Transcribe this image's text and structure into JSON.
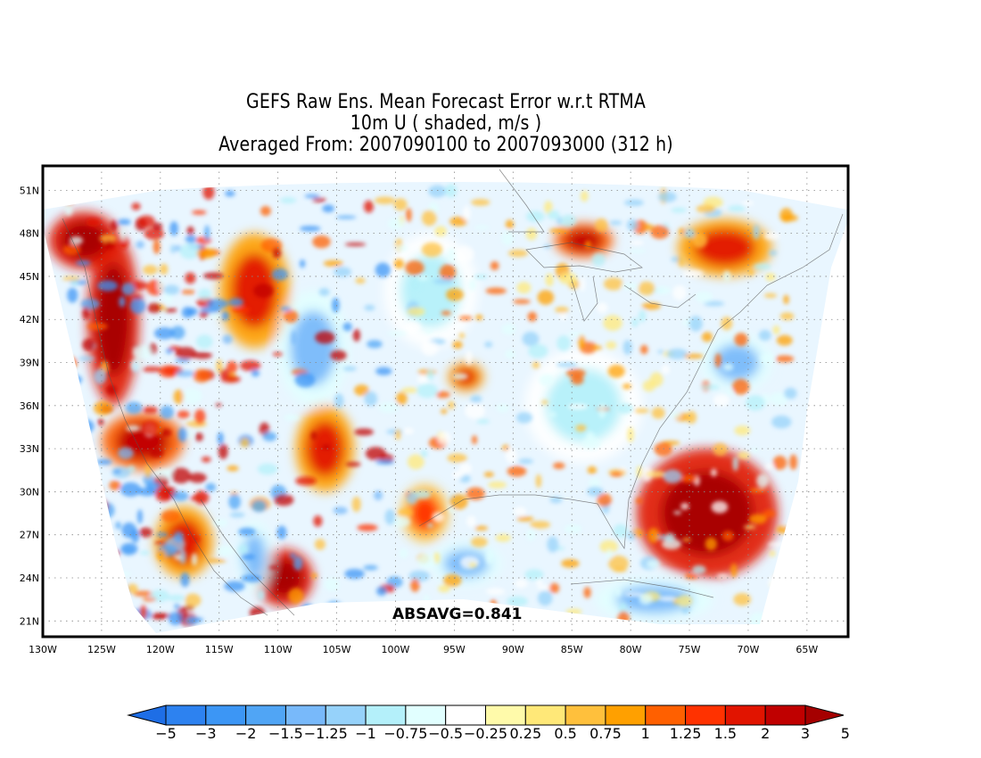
{
  "title": {
    "line1": "GEFS Raw Ens. Mean Forecast Error w.r.t RTMA",
    "line2": "10m U ( shaded, m/s )",
    "line3": "Averaged From: 2007090100 to 2007093000 (312 h)"
  },
  "annotation": "ABSAVG=0.841",
  "map": {
    "projection": "latitude-longitude",
    "lon_range": [
      -130,
      -61.5
    ],
    "lat_range": [
      19.9,
      52.7
    ],
    "gridlines": "dotted",
    "lon_ticks": [
      {
        "value": -130,
        "label": "130W"
      },
      {
        "value": -125,
        "label": "125W"
      },
      {
        "value": -120,
        "label": "120W"
      },
      {
        "value": -115,
        "label": "115W"
      },
      {
        "value": -110,
        "label": "110W"
      },
      {
        "value": -105,
        "label": "105W"
      },
      {
        "value": -100,
        "label": "100W"
      },
      {
        "value": -95,
        "label": "95W"
      },
      {
        "value": -90,
        "label": "90W"
      },
      {
        "value": -85,
        "label": "85W"
      },
      {
        "value": -80,
        "label": "80W"
      },
      {
        "value": -75,
        "label": "75W"
      },
      {
        "value": -70,
        "label": "70W"
      },
      {
        "value": -65,
        "label": "65W"
      }
    ],
    "lat_ticks": [
      {
        "value": 21,
        "label": "21N"
      },
      {
        "value": 24,
        "label": "24N"
      },
      {
        "value": 27,
        "label": "27N"
      },
      {
        "value": 30,
        "label": "30N"
      },
      {
        "value": 33,
        "label": "33N"
      },
      {
        "value": 36,
        "label": "36N"
      },
      {
        "value": 39,
        "label": "39N"
      },
      {
        "value": 42,
        "label": "42N"
      },
      {
        "value": 45,
        "label": "45N"
      },
      {
        "value": 48,
        "label": "48N"
      },
      {
        "value": 51,
        "label": "51N"
      }
    ],
    "features": [
      {
        "name": "pacific-coast-positive-band",
        "sign": "positive",
        "value": 3,
        "lon": -124,
        "lat": 42,
        "rx": 2.2,
        "ry": 6
      },
      {
        "name": "pacific-northwest-positive",
        "sign": "positive",
        "value": 3,
        "lon": -126.5,
        "lat": 47.5,
        "rx": 3,
        "ry": 2
      },
      {
        "name": "california-coast-positive",
        "sign": "positive",
        "value": 2,
        "lon": -121.5,
        "lat": 33.5,
        "rx": 3.5,
        "ry": 2
      },
      {
        "name": "southern-california-positive",
        "sign": "positive",
        "value": 1.5,
        "lon": -118,
        "lat": 26.5,
        "rx": 2.5,
        "ry": 2.5
      },
      {
        "name": "baja-gulf-positive",
        "sign": "positive",
        "value": 3,
        "lon": -109.5,
        "lat": 24,
        "rx": 2.5,
        "ry": 2
      },
      {
        "name": "baja-west-negative",
        "sign": "negative",
        "value": -1.5,
        "lon": -112,
        "lat": 25.5,
        "rx": 1.5,
        "ry": 2.5
      },
      {
        "name": "rockies-mixed-positive",
        "sign": "positive",
        "value": 1.5,
        "lon": -112,
        "lat": 44,
        "rx": 3,
        "ry": 4
      },
      {
        "name": "rockies-mixed-negative",
        "sign": "negative",
        "value": -1.5,
        "lon": -107,
        "lat": 40,
        "rx": 3,
        "ry": 4
      },
      {
        "name": "southwest-positive",
        "sign": "positive",
        "value": 1.5,
        "lon": -106,
        "lat": 33,
        "rx": 2.5,
        "ry": 3
      },
      {
        "name": "texas-positive",
        "sign": "positive",
        "value": 1.25,
        "lon": -97.5,
        "lat": 28.5,
        "rx": 2,
        "ry": 2
      },
      {
        "name": "mexico-gulf-negative",
        "sign": "negative",
        "value": -1.5,
        "lon": -94,
        "lat": 25,
        "rx": 3,
        "ry": 1.5
      },
      {
        "name": "great-plains-negative",
        "sign": "negative",
        "value": -1,
        "lon": -97,
        "lat": 44,
        "rx": 4,
        "ry": 4
      },
      {
        "name": "great-lakes-positive",
        "sign": "positive",
        "value": 2,
        "lon": -84,
        "lat": 47.5,
        "rx": 2.5,
        "ry": 1.2
      },
      {
        "name": "eastern-us-negative",
        "sign": "negative",
        "value": -1,
        "lon": -84,
        "lat": 36,
        "rx": 5,
        "ry": 4
      },
      {
        "name": "atlantic-subtropical-positive",
        "sign": "positive",
        "value": 3,
        "lon": -73.5,
        "lat": 28.5,
        "rx": 6,
        "ry": 4.5
      },
      {
        "name": "caribbean-negative",
        "sign": "negative",
        "value": -1.5,
        "lon": -78,
        "lat": 22.5,
        "rx": 5,
        "ry": 1.5
      },
      {
        "name": "atlantic-north-negative",
        "sign": "negative",
        "value": -1.5,
        "lon": -71,
        "lat": 39,
        "rx": 3,
        "ry": 2
      },
      {
        "name": "northeast-positive",
        "sign": "positive",
        "value": 1.5,
        "lon": -72,
        "lat": 47,
        "rx": 4,
        "ry": 2
      },
      {
        "name": "southern-plains-positive",
        "sign": "positive",
        "value": 1.5,
        "lon": -94,
        "lat": 38,
        "rx": 1.5,
        "ry": 1
      }
    ]
  },
  "colorbar": {
    "colors": [
      "#1e6ee6",
      "#2d82f0",
      "#3c96f5",
      "#50a5f5",
      "#78b9fa",
      "#96d2fa",
      "#b4f0fa",
      "#e1ffff",
      "#ffffff",
      "#fffaaa",
      "#ffe878",
      "#ffc03c",
      "#ffa000",
      "#ff6000",
      "#ff3200",
      "#e11400",
      "#c00000",
      "#a50000"
    ],
    "labels": [
      "−5",
      "−3",
      "−2",
      "−1.5",
      "−1.25",
      "−1",
      "−0.75",
      "−0.5",
      "−0.25",
      "0.25",
      "0.5",
      "0.75",
      "1",
      "1.25",
      "1.5",
      "2",
      "3",
      "5"
    ]
  }
}
